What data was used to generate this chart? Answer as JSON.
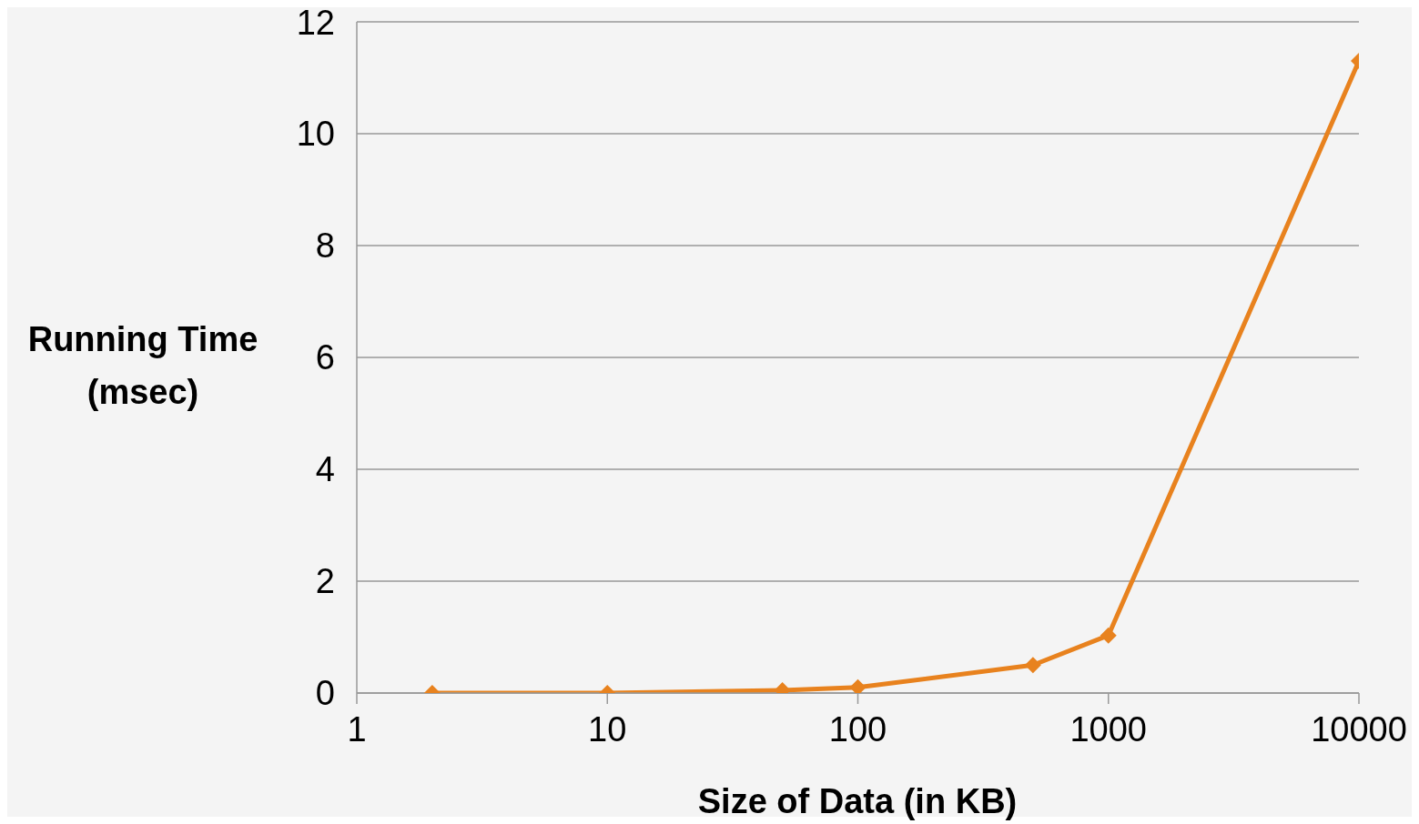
{
  "chart_data": {
    "type": "line",
    "xlabel": "Size of Data (in KB)",
    "ylabel": "Running Time (msec)",
    "x": [
      2,
      10,
      50,
      100,
      500,
      1000,
      10000
    ],
    "series": [
      {
        "color": "#e8821e",
        "values": [
          0,
          0,
          0.05,
          0.1,
          0.5,
          1.03,
          11.3
        ]
      }
    ],
    "log": "x",
    "xlim": [
      1,
      10000
    ],
    "xticks": [
      1,
      10,
      100,
      1000,
      10000
    ],
    "ylim": [
      0,
      12
    ],
    "yticks": [
      0,
      2,
      4,
      6,
      8,
      10,
      12
    ],
    "grid": "y",
    "marker": "diamond",
    "line_style": "solid"
  }
}
